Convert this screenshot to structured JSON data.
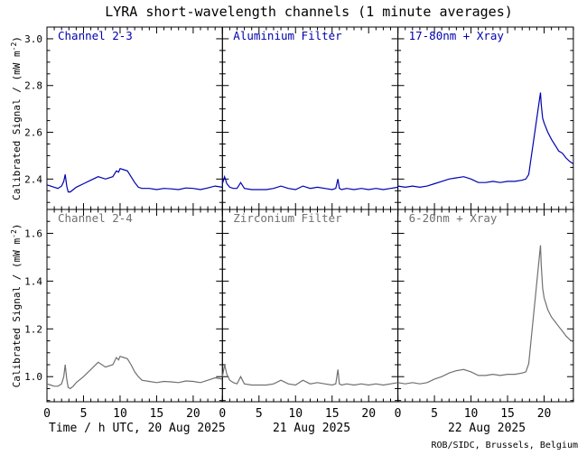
{
  "title": "LYRA short-wavelength channels (1 minute averages)",
  "ylabel": "Calibrated Signal / (mW m",
  "ylabel_sup": "-2",
  "ylabel_tail": ")",
  "xlabel_prefix": "Time / h UTC, 20 Aug 2025",
  "day_labels": [
    "21 Aug 2025",
    "22 Aug 2025"
  ],
  "credit": "ROB/SIDC, Brussels, Belgium",
  "chart_data": [
    {
      "type": "line",
      "row": "top",
      "ylim": [
        2.27,
        3.05
      ],
      "yticks": [
        2.4,
        2.6,
        2.8,
        3.0
      ],
      "ytick_labels": [
        "2.4",
        "2.6",
        "2.8",
        "3.0"
      ],
      "xlim": [
        0,
        24
      ],
      "xticks": [
        0,
        5,
        10,
        15,
        20
      ],
      "color": "#0000b0",
      "panels": [
        {
          "label": "Channel 2-3",
          "x": [
            0,
            0.5,
            1,
            1.5,
            2,
            2.3,
            2.5,
            2.7,
            2.9,
            3.2,
            3.6,
            4,
            5,
            6,
            7,
            8,
            9,
            9.5,
            9.8,
            10,
            10.5,
            11,
            11.5,
            12,
            12.5,
            13,
            14,
            15,
            16,
            17,
            18,
            19,
            20,
            21,
            22,
            23,
            24
          ],
          "y": [
            2.375,
            2.37,
            2.365,
            2.36,
            2.37,
            2.39,
            2.42,
            2.37,
            2.345,
            2.345,
            2.355,
            2.365,
            2.38,
            2.395,
            2.41,
            2.4,
            2.41,
            2.435,
            2.43,
            2.445,
            2.44,
            2.435,
            2.41,
            2.385,
            2.365,
            2.36,
            2.36,
            2.355,
            2.36,
            2.358,
            2.355,
            2.362,
            2.36,
            2.355,
            2.362,
            2.37,
            2.365
          ]
        },
        {
          "label": "Aluminium Filter",
          "x": [
            0,
            0.3,
            0.6,
            1,
            1.5,
            2,
            2.5,
            3,
            4,
            5,
            6,
            7,
            8,
            9,
            10,
            11,
            12,
            13,
            14,
            15,
            15.5,
            15.8,
            16,
            16.3,
            17,
            18,
            19,
            20,
            21,
            22,
            23,
            24
          ],
          "y": [
            2.38,
            2.41,
            2.38,
            2.365,
            2.36,
            2.36,
            2.385,
            2.36,
            2.355,
            2.355,
            2.355,
            2.36,
            2.37,
            2.36,
            2.355,
            2.37,
            2.36,
            2.365,
            2.36,
            2.355,
            2.36,
            2.4,
            2.36,
            2.355,
            2.36,
            2.355,
            2.36,
            2.355,
            2.36,
            2.355,
            2.36,
            2.365
          ]
        },
        {
          "label": "17-80nm + Xray",
          "x": [
            0,
            1,
            2,
            3,
            4,
            5,
            6,
            7,
            8,
            9,
            10,
            11,
            12,
            13,
            14,
            15,
            16,
            17,
            17.5,
            17.9,
            19.5,
            19.6,
            19.8,
            20,
            20.5,
            21,
            21.5,
            22,
            22.5,
            23,
            23.5,
            24
          ],
          "y": [
            2.37,
            2.365,
            2.37,
            2.365,
            2.37,
            2.38,
            2.39,
            2.4,
            2.405,
            2.41,
            2.4,
            2.385,
            2.385,
            2.39,
            2.385,
            2.39,
            2.39,
            2.395,
            2.4,
            2.42,
            2.77,
            2.72,
            2.66,
            2.64,
            2.6,
            2.57,
            2.545,
            2.52,
            2.51,
            2.49,
            2.475,
            2.465
          ]
        }
      ]
    },
    {
      "type": "line",
      "row": "bottom",
      "ylim": [
        0.895,
        1.7
      ],
      "yticks": [
        1.0,
        1.2,
        1.4,
        1.6
      ],
      "ytick_labels": [
        "1.0",
        "1.2",
        "1.4",
        "1.6"
      ],
      "xlim": [
        0,
        24
      ],
      "xticks": [
        0,
        5,
        10,
        15,
        20
      ],
      "color": "#707070",
      "panels": [
        {
          "label": "Channel 2-4",
          "x": [
            0,
            0.5,
            1,
            1.5,
            2,
            2.3,
            2.5,
            2.7,
            2.9,
            3.2,
            3.6,
            4,
            5,
            6,
            7,
            8,
            9,
            9.5,
            9.8,
            10,
            10.5,
            11,
            11.5,
            12,
            12.5,
            13,
            14,
            15,
            16,
            17,
            18,
            19,
            20,
            21,
            22,
            23,
            24
          ],
          "y": [
            0.97,
            0.965,
            0.96,
            0.96,
            0.97,
            1.0,
            1.05,
            0.99,
            0.955,
            0.95,
            0.96,
            0.975,
            1.0,
            1.03,
            1.06,
            1.04,
            1.05,
            1.08,
            1.07,
            1.085,
            1.08,
            1.075,
            1.05,
            1.02,
            1.0,
            0.985,
            0.98,
            0.975,
            0.98,
            0.978,
            0.975,
            0.982,
            0.98,
            0.975,
            0.985,
            0.995,
            0.99
          ]
        },
        {
          "label": "Zirconium Filter",
          "x": [
            0,
            0.3,
            0.6,
            1,
            1.5,
            2,
            2.5,
            3,
            4,
            5,
            6,
            7,
            8,
            9,
            10,
            11,
            12,
            13,
            14,
            15,
            15.5,
            15.8,
            16,
            16.3,
            17,
            18,
            19,
            20,
            21,
            22,
            23,
            24
          ],
          "y": [
            1.0,
            1.05,
            1.01,
            0.985,
            0.975,
            0.97,
            1.0,
            0.97,
            0.965,
            0.965,
            0.965,
            0.97,
            0.985,
            0.97,
            0.965,
            0.985,
            0.97,
            0.975,
            0.97,
            0.965,
            0.97,
            1.03,
            0.97,
            0.965,
            0.97,
            0.965,
            0.97,
            0.965,
            0.97,
            0.965,
            0.97,
            0.975
          ]
        },
        {
          "label": "6-20nm + Xray",
          "x": [
            0,
            1,
            2,
            3,
            4,
            5,
            6,
            7,
            8,
            9,
            10,
            11,
            12,
            13,
            14,
            15,
            16,
            17,
            17.5,
            17.9,
            19.5,
            19.6,
            19.8,
            20,
            20.5,
            21,
            21.5,
            22,
            22.5,
            23,
            23.5,
            24
          ],
          "y": [
            0.975,
            0.97,
            0.975,
            0.97,
            0.975,
            0.99,
            1.0,
            1.015,
            1.025,
            1.03,
            1.02,
            1.005,
            1.005,
            1.01,
            1.005,
            1.01,
            1.01,
            1.015,
            1.02,
            1.055,
            1.55,
            1.47,
            1.37,
            1.33,
            1.28,
            1.25,
            1.23,
            1.21,
            1.19,
            1.17,
            1.155,
            1.145
          ]
        }
      ]
    }
  ]
}
